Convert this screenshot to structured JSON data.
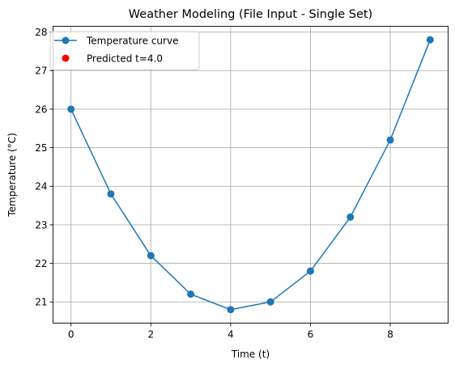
{
  "chart_data": {
    "type": "line",
    "title": "Weather Modeling (File Input - Single Set)",
    "xlabel": "Time (t)",
    "ylabel": "Temperature (°C)",
    "xlim": [
      -0.45,
      9.45
    ],
    "ylim": [
      20.45,
      28.15
    ],
    "x_ticks": [
      0,
      2,
      4,
      6,
      8
    ],
    "y_ticks": [
      21,
      22,
      23,
      24,
      25,
      26,
      27,
      28
    ],
    "x_tick_labels": [
      "0",
      "2",
      "4",
      "6",
      "8"
    ],
    "y_tick_labels": [
      "21",
      "22",
      "23",
      "24",
      "25",
      "26",
      "27",
      "28"
    ],
    "grid": true,
    "legend_position": "top-left",
    "series": [
      {
        "name": "Temperature curve",
        "kind": "line-marker",
        "color": "#1f77b4",
        "x": [
          0,
          1,
          2,
          3,
          4,
          5,
          6,
          7,
          8,
          9
        ],
        "y": [
          26.0,
          23.8,
          22.2,
          21.2,
          20.8,
          21.0,
          21.8,
          23.2,
          25.2,
          27.8
        ]
      },
      {
        "name": "Predicted t=4.0",
        "kind": "scatter",
        "color": "#ff0000",
        "x": [],
        "y": []
      }
    ]
  }
}
